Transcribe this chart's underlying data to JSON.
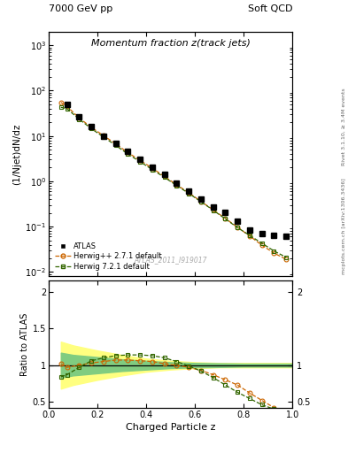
{
  "title_top_left": "7000 GeV pp",
  "title_top_right": "Soft QCD",
  "plot_title": "Momentum fraction z(track jets)",
  "xlabel": "Charged Particle z",
  "ylabel_main": "(1/Njet)dN/dz",
  "ylabel_ratio": "Ratio to ATLAS",
  "right_label_top": "Rivet 3.1.10, ≥ 3.4M events",
  "right_label_bottom": "mcplots.cern.ch [arXiv:1306.3436]",
  "watermark": "ATLAS_2011_I919017",
  "atlas_z": [
    0.075,
    0.125,
    0.175,
    0.225,
    0.275,
    0.325,
    0.375,
    0.425,
    0.475,
    0.525,
    0.575,
    0.625,
    0.675,
    0.725,
    0.775,
    0.825,
    0.875,
    0.925,
    0.975
  ],
  "atlas_y": [
    50.0,
    26.0,
    16.0,
    10.0,
    7.0,
    4.5,
    3.0,
    2.0,
    1.4,
    0.9,
    0.6,
    0.4,
    0.27,
    0.21,
    0.13,
    0.085,
    0.07,
    0.065,
    0.06
  ],
  "herwig_pp_z": [
    0.05,
    0.075,
    0.125,
    0.175,
    0.225,
    0.275,
    0.325,
    0.375,
    0.425,
    0.475,
    0.525,
    0.575,
    0.625,
    0.675,
    0.725,
    0.775,
    0.825,
    0.875,
    0.925,
    0.975
  ],
  "herwig_pp_y": [
    55.0,
    45.0,
    25.0,
    15.5,
    10.2,
    6.7,
    4.3,
    2.9,
    1.95,
    1.28,
    0.84,
    0.56,
    0.36,
    0.235,
    0.152,
    0.097,
    0.062,
    0.039,
    0.026,
    0.019
  ],
  "herwig72_z": [
    0.05,
    0.075,
    0.125,
    0.175,
    0.225,
    0.275,
    0.325,
    0.375,
    0.425,
    0.475,
    0.525,
    0.575,
    0.625,
    0.675,
    0.725,
    0.775,
    0.825,
    0.875,
    0.925,
    0.975
  ],
  "herwig72_y": [
    43.0,
    40.0,
    23.5,
    14.5,
    9.5,
    6.2,
    4.0,
    2.7,
    1.82,
    1.22,
    0.81,
    0.54,
    0.355,
    0.23,
    0.148,
    0.095,
    0.064,
    0.043,
    0.029,
    0.021
  ],
  "ratio_pp_z": [
    0.05,
    0.075,
    0.125,
    0.175,
    0.225,
    0.275,
    0.325,
    0.375,
    0.425,
    0.475,
    0.525,
    0.575,
    0.625,
    0.675,
    0.725,
    0.775,
    0.825,
    0.875,
    0.925,
    0.975
  ],
  "ratio_pp_y": [
    1.02,
    0.97,
    1.0,
    1.03,
    1.05,
    1.07,
    1.07,
    1.06,
    1.05,
    1.02,
    1.0,
    0.97,
    0.93,
    0.87,
    0.8,
    0.73,
    0.62,
    0.52,
    0.42,
    0.33
  ],
  "ratio_72_z": [
    0.05,
    0.075,
    0.125,
    0.175,
    0.225,
    0.275,
    0.325,
    0.375,
    0.425,
    0.475,
    0.525,
    0.575,
    0.625,
    0.675,
    0.725,
    0.775,
    0.825,
    0.875,
    0.925,
    0.975
  ],
  "ratio_72_y": [
    0.84,
    0.87,
    0.97,
    1.06,
    1.1,
    1.13,
    1.14,
    1.14,
    1.13,
    1.1,
    1.05,
    0.99,
    0.92,
    0.83,
    0.73,
    0.63,
    0.545,
    0.46,
    0.4,
    0.36
  ],
  "band_yellow_x": [
    0.05,
    0.1,
    0.2,
    0.3,
    0.4,
    0.5,
    0.6,
    0.7,
    0.8,
    0.9,
    1.0
  ],
  "band_yellow_lo": [
    0.68,
    0.73,
    0.8,
    0.86,
    0.91,
    0.94,
    0.96,
    0.97,
    0.97,
    0.97,
    0.97
  ],
  "band_yellow_hi": [
    1.32,
    1.27,
    1.2,
    1.14,
    1.09,
    1.06,
    1.04,
    1.03,
    1.03,
    1.03,
    1.03
  ],
  "band_green_x": [
    0.05,
    0.1,
    0.2,
    0.3,
    0.4,
    0.5,
    0.6,
    0.7,
    0.8,
    0.9,
    1.0
  ],
  "band_green_lo": [
    0.83,
    0.86,
    0.89,
    0.92,
    0.94,
    0.96,
    0.97,
    0.975,
    0.98,
    0.98,
    0.98
  ],
  "band_green_hi": [
    1.17,
    1.14,
    1.11,
    1.08,
    1.06,
    1.04,
    1.03,
    1.025,
    1.02,
    1.02,
    1.02
  ],
  "color_atlas": "#000000",
  "color_herwig_pp": "#cc6600",
  "color_herwig_72": "#336600",
  "color_yellow_band": "#ffff80",
  "color_green_band": "#80cc80",
  "ylim_main": [
    0.008,
    2000
  ],
  "ylim_ratio": [
    0.42,
    2.15
  ],
  "xlim": [
    0.0,
    1.0
  ],
  "fig_width": 3.93,
  "fig_height": 5.12,
  "dpi": 100
}
